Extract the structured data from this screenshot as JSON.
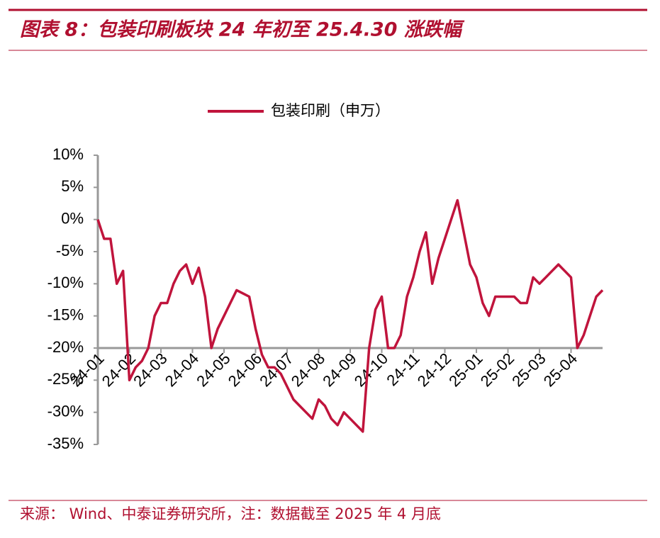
{
  "header": {
    "title": "图表 8：包装印刷板块 24 年初至 25.4.30 涨跌幅"
  },
  "chart_data": {
    "type": "line",
    "categories": [
      "24-01",
      null,
      null,
      null,
      null,
      "24-02",
      null,
      null,
      null,
      null,
      "24-03",
      null,
      null,
      null,
      null,
      "24-04",
      null,
      null,
      null,
      null,
      "24-05",
      null,
      null,
      null,
      null,
      "24-06",
      null,
      null,
      null,
      null,
      "24-07",
      null,
      null,
      null,
      null,
      "24-08",
      null,
      null,
      null,
      null,
      "24-09",
      null,
      null,
      null,
      null,
      "24-10",
      null,
      null,
      null,
      null,
      "24-11",
      null,
      null,
      null,
      null,
      "24-12",
      null,
      null,
      null,
      null,
      "25-01",
      null,
      null,
      null,
      null,
      "25-02",
      null,
      null,
      null,
      null,
      "25-03",
      null,
      null,
      null,
      null,
      "25-04",
      null,
      null,
      null,
      null,
      null
    ],
    "series": [
      {
        "name": "包装印刷（申万）",
        "color": "#c0143c",
        "values": [
          0,
          -3,
          -3,
          -10,
          -8,
          -25,
          -23,
          -22,
          -20,
          -15,
          -13,
          -13,
          -10,
          -8,
          -7,
          -10,
          -7.5,
          -12,
          -20,
          -17,
          -15,
          -13,
          -11,
          -11.5,
          -12,
          -17,
          -21,
          -23,
          -23,
          -24,
          -26,
          -28,
          -29,
          -30,
          -31,
          -28,
          -29,
          -31,
          -32,
          -30,
          -31,
          -32,
          -33,
          -20,
          -14,
          -12,
          -20,
          -20,
          -18,
          -12,
          -9,
          -5,
          -2,
          -10,
          -6,
          -3,
          0,
          3,
          -2,
          -7,
          -9,
          -13,
          -15,
          -12,
          -12,
          -12,
          -12,
          -13,
          -13,
          -9,
          -10,
          -9,
          -8,
          -7,
          -8,
          -9,
          -20,
          -18,
          -15,
          -12,
          -11
        ]
      }
    ],
    "ylim": [
      -35,
      10
    ],
    "yticks": [
      {
        "value": 10,
        "label": "10%"
      },
      {
        "value": 5,
        "label": "5%"
      },
      {
        "value": 0,
        "label": "0%"
      },
      {
        "value": -5,
        "label": "-5%"
      },
      {
        "value": -10,
        "label": "-10%"
      },
      {
        "value": -15,
        "label": "-15%"
      },
      {
        "value": -20,
        "label": "-20%"
      },
      {
        "value": -25,
        "label": "-25%"
      },
      {
        "value": -30,
        "label": "-30%"
      },
      {
        "value": -35,
        "label": "-35%"
      }
    ],
    "xaxis_crosses": -20
  },
  "footer": {
    "source": "来源： Wind、中泰证券研究所，注：数据截至 2025 年 4 月底"
  }
}
